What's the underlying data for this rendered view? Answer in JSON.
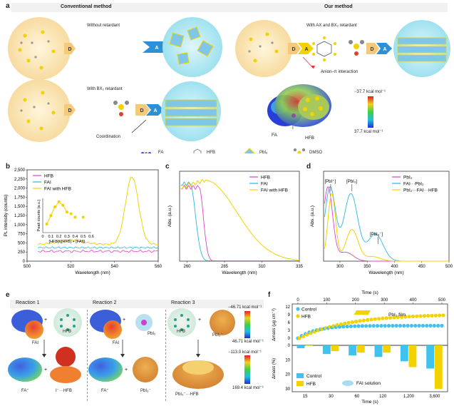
{
  "panel_a": {
    "label": "a",
    "conventional_title": "Conventional method",
    "our_title": "Our method",
    "without_retardant": "Without retardant",
    "with_ax_bx": "With AX and BX₂ retardant",
    "with_bx": "With BX₂ retardant",
    "anion_pi": "Anion–π interaction",
    "coordination": "Coordination",
    "d": "D",
    "a": "A",
    "esp_max": "−37.7 kcal mol⁻¹",
    "esp_min": "37.7 kcal mol⁻¹",
    "fa": "FA",
    "i": "I",
    "hfb": "HFB",
    "legend": [
      "FA",
      "HFB",
      "PbI₆",
      "DMSO"
    ]
  },
  "panel_b": {
    "label": "b",
    "chart_data": {
      "type": "line",
      "xlabel": "Wavelength (nm)",
      "ylabel": "PL intensity (counts)",
      "xlim": [
        500,
        560
      ],
      "ylim": [
        0,
        2500
      ],
      "xticks": [
        "500",
        "520",
        "540",
        "560"
      ],
      "yticks": [
        "0",
        "250",
        "500",
        "750",
        "1,000",
        "1,250",
        "1,500",
        "1,750",
        "2,000",
        "2,250",
        "2,500"
      ],
      "series": [
        {
          "name": "HFB",
          "color": "#e040c8"
        },
        {
          "name": "FAI",
          "color": "#2cb6e0"
        },
        {
          "name": "FAI with HFB",
          "color": "#f2d200"
        }
      ],
      "inset": {
        "xlabel": "[HFB]/([HFB] + [FAI])",
        "ylabel": "Peak counts (a.u.)",
        "xticks": [
          "0",
          "0.1",
          "0.2",
          "0.3",
          "0.4",
          "0.5",
          "0.6"
        ],
        "x": [
          0.05,
          0.1,
          0.15,
          0.2,
          0.25,
          0.3,
          0.35,
          0.4,
          0.5
        ],
        "y": [
          0.25,
          0.5,
          0.75,
          0.9,
          0.8,
          0.6,
          0.55,
          0.45,
          0.45
        ]
      }
    }
  },
  "panel_c": {
    "label": "c",
    "chart_data": {
      "type": "line",
      "xlabel": "Wavelength (nm)",
      "ylabel": "Abs. (a.u.)",
      "xlim": [
        255,
        335
      ],
      "xticks": [
        "260",
        "285",
        "310",
        "335"
      ],
      "series": [
        {
          "name": "HFB",
          "color": "#e040c8"
        },
        {
          "name": "FAI",
          "color": "#2cb6e0"
        },
        {
          "name": "FAI with HFB",
          "color": "#f2d200"
        }
      ]
    }
  },
  "panel_d": {
    "label": "d",
    "chart_data": {
      "type": "line",
      "xlabel": "Wavelength (nm)",
      "ylabel": "Abs. (a.u.)",
      "xlim": [
        270,
        500
      ],
      "xticks": [
        "300",
        "350",
        "400",
        "450",
        "500"
      ],
      "annotations": [
        "[PbI⁺]",
        "[PbI₃]",
        "[PbI₃⁻]"
      ],
      "series": [
        {
          "name": "PbI₂",
          "color": "#e040c8"
        },
        {
          "name": "FAI···PbI₂",
          "color": "#2cb6e0"
        },
        {
          "name": "PbI₂···FAI···HFB",
          "color": "#f2d200"
        }
      ]
    }
  },
  "panel_e": {
    "label": "e",
    "reactions": [
      "Reaction 1",
      "Reaction 2",
      "Reaction 3"
    ],
    "r1_top": [
      "FAI",
      "HFB"
    ],
    "r1_bottom": [
      "FA⁺",
      "I⁻···HFB"
    ],
    "r2_top": [
      "FAI",
      "PbI₂"
    ],
    "r2_bottom": [
      "FA⁺",
      "PbI₃⁻"
    ],
    "r3_top": [
      "HFB",
      "PbI₃⁻"
    ],
    "r3_bottom": "PbI₃⁻···HFB",
    "scale1_max": "−46.71 kcal mol⁻¹",
    "scale1_min": "46.71 kcal mol⁻¹",
    "scale2_max": "−113.0 kcal mol⁻¹",
    "scale2_min": "169.4 kcal mol⁻¹"
  },
  "panel_f": {
    "label": "f",
    "chart_data": {
      "type": "bar",
      "top_xlabel": "Time (s)",
      "top_xticks": [
        "0",
        "100",
        "200",
        "300",
        "400",
        "500"
      ],
      "top_ylabel": "Δmass (μg cm⁻²)",
      "top_yticks": [
        "0",
        "3",
        "6",
        "9",
        "12"
      ],
      "bottom_ylabel": "Δmass (%)",
      "bottom_yticks": [
        "0",
        "10",
        "20",
        "30"
      ],
      "categories": [
        "15",
        "30",
        "60",
        "120",
        "1,200",
        "3,600"
      ],
      "xlabel": "Time (s)",
      "film_label": "PbI₂ film",
      "solution_label": "FAI solution",
      "series": [
        {
          "name": "Control",
          "color": "#3fc2ee",
          "values": [
            2,
            6,
            7,
            8,
            11,
            16
          ]
        },
        {
          "name": "HFB",
          "color": "#f2d200",
          "values": [
            0,
            4,
            5,
            5,
            15,
            30
          ]
        }
      ]
    }
  }
}
